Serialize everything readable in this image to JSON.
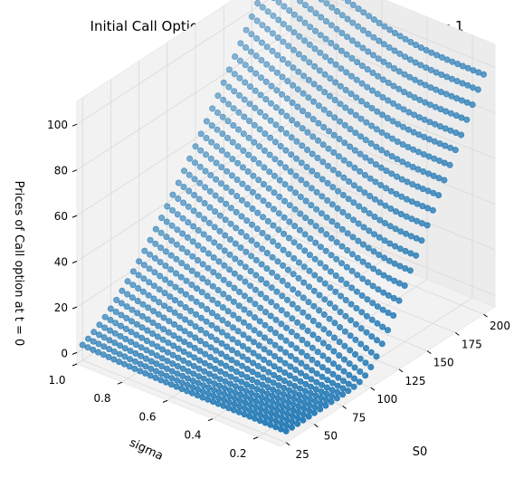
{
  "chart_data": {
    "type": "scatter",
    "projection": "3d",
    "title": "Initial Call Option Price vs S0 and sigma for the set = 1",
    "xlabel": "S0",
    "ylabel": "sigma",
    "zlabel": "Prices of Call option at t = 0",
    "xlim": [
      20,
      210
    ],
    "ylim": [
      0.1,
      1.0
    ],
    "zlim": [
      -5,
      110
    ],
    "xticks": [
      25,
      50,
      75,
      100,
      125,
      150,
      175,
      200
    ],
    "yticks": [
      0.2,
      0.4,
      0.6,
      0.8,
      1.0
    ],
    "zticks": [
      0,
      20,
      40,
      60,
      80,
      100
    ],
    "grid": true,
    "marker_color": "#1f77b4",
    "points": {
      "x_start": 25,
      "x_end": 200,
      "x_count": 36,
      "y_start": 0.1,
      "y_end": 1.0,
      "y_count": 40,
      "z_rule": "European call price with strike K = 100, time to maturity 1, zero rate: z = S0*N(d1) - K*N(d2)"
    }
  }
}
